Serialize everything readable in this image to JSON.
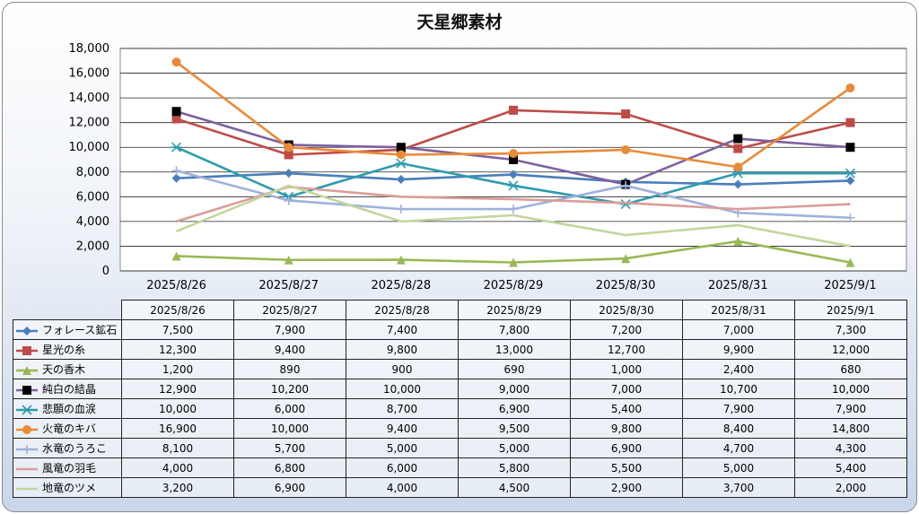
{
  "chart_data": {
    "type": "line",
    "title": "天星郷素材",
    "categories": [
      "2025/8/26",
      "2025/8/27",
      "2025/8/28",
      "2025/8/29",
      "2025/8/30",
      "2025/8/31",
      "2025/9/1"
    ],
    "ylim": [
      0,
      18000
    ],
    "yticks": [
      "0",
      "2,000",
      "4,000",
      "6,000",
      "8,000",
      "10,000",
      "12,000",
      "14,000",
      "16,000",
      "18,000"
    ],
    "grid": true,
    "legend": "table-left",
    "series": [
      {
        "name": "フォレース鉱石",
        "color": "#4a7ebb",
        "marker": "diamond",
        "values": [
          7500,
          7900,
          7400,
          7800,
          7200,
          7000,
          7300
        ],
        "labels": [
          "7,500",
          "7,900",
          "7,400",
          "7,800",
          "7,200",
          "7,000",
          "7,300"
        ]
      },
      {
        "name": "星光の糸",
        "color": "#be4b48",
        "marker": "square",
        "values": [
          12300,
          9400,
          9800,
          13000,
          12700,
          9900,
          12000
        ],
        "labels": [
          "12,300",
          "9,400",
          "9,800",
          "13,000",
          "12,700",
          "9,900",
          "12,000"
        ]
      },
      {
        "name": "天の香木",
        "color": "#98b954",
        "marker": "triangle",
        "values": [
          1200,
          890,
          900,
          690,
          1000,
          2400,
          680
        ],
        "labels": [
          "1,200",
          "890",
          "900",
          "690",
          "1,000",
          "2,400",
          "680"
        ]
      },
      {
        "name": "純白の結晶",
        "color": "#7d60a0",
        "marker": "blacksquare",
        "values": [
          12900,
          10200,
          10000,
          9000,
          7000,
          10700,
          10000
        ],
        "labels": [
          "12,900",
          "10,200",
          "10,000",
          "9,000",
          "7,000",
          "10,700",
          "10,000"
        ]
      },
      {
        "name": "悲願の血涙",
        "color": "#2e9cae",
        "marker": "star",
        "values": [
          10000,
          6000,
          8700,
          6900,
          5400,
          7900,
          7900
        ],
        "labels": [
          "10,000",
          "6,000",
          "8,700",
          "6,900",
          "5,400",
          "7,900",
          "7,900"
        ]
      },
      {
        "name": "火竜のキバ",
        "color": "#e98a36",
        "marker": "circle",
        "values": [
          16900,
          10000,
          9400,
          9500,
          9800,
          8400,
          14800
        ],
        "labels": [
          "16,900",
          "10,000",
          "9,400",
          "9,500",
          "9,800",
          "8,400",
          "14,800"
        ]
      },
      {
        "name": "水竜のうろこ",
        "color": "#9fb0db",
        "marker": "plus",
        "values": [
          8100,
          5700,
          5000,
          5000,
          6900,
          4700,
          4300
        ],
        "labels": [
          "8,100",
          "5,700",
          "5,000",
          "5,000",
          "6,900",
          "4,700",
          "4,300"
        ]
      },
      {
        "name": "風竜の羽毛",
        "color": "#dc9c9a",
        "marker": "none",
        "values": [
          4000,
          6800,
          6000,
          5800,
          5500,
          5000,
          5400
        ],
        "labels": [
          "4,000",
          "6,800",
          "6,000",
          "5,800",
          "5,500",
          "5,000",
          "5,400"
        ]
      },
      {
        "name": "地竜のツメ",
        "color": "#c3d69b",
        "marker": "none",
        "values": [
          3200,
          6900,
          4000,
          4500,
          2900,
          3700,
          2000
        ],
        "labels": [
          "3,200",
          "6,900",
          "4,000",
          "4,500",
          "2,900",
          "3,700",
          "2,000"
        ]
      }
    ]
  }
}
